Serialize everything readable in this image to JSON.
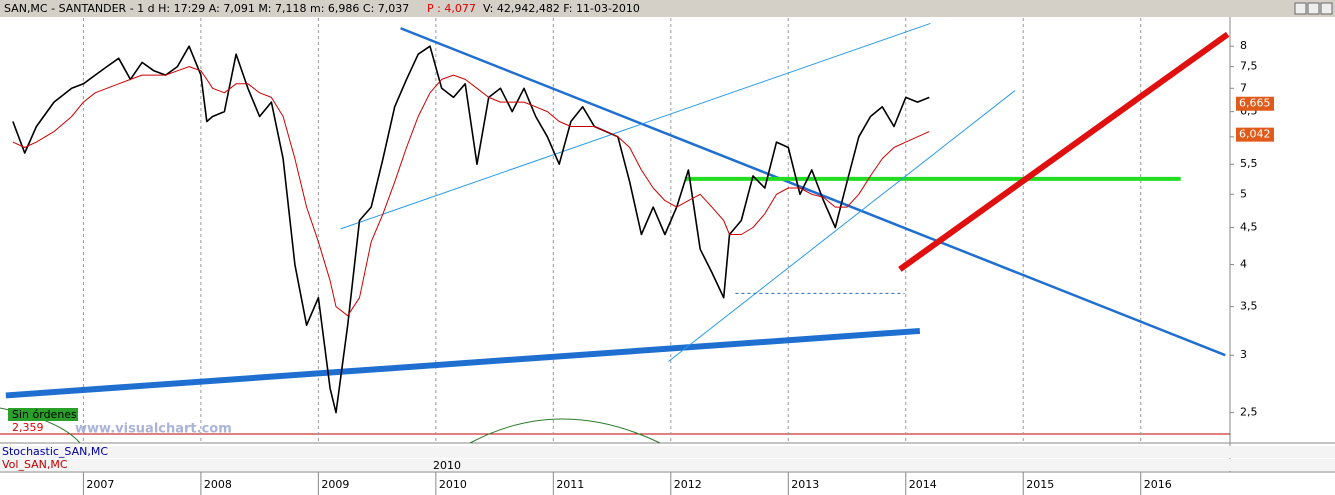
{
  "header": {
    "parts": [
      "SAN,MC - SANTANDER -  1 d  H: 17:29  A: 7,091  M: 7,118  m: 6,986  C: 7,037",
      "P : 4,077",
      "V: 42,942,482  F: 11-03-2010"
    ]
  },
  "panel": {
    "orders": "Sin órdenes",
    "orders_value": "2,359",
    "watermark": "www.visualchart.com",
    "stochastic": "Stochastic_SAN,MC",
    "volume": "Vol_SAN,MC",
    "marker": "2010"
  },
  "chart_data": {
    "type": "line",
    "ylog": true,
    "xgrid": true,
    "x": [
      2006.4,
      2006.5,
      2006.6,
      2006.75,
      2006.9,
      2007.0,
      2007.1,
      2007.2,
      2007.3,
      2007.4,
      2007.5,
      2007.6,
      2007.7,
      2007.8,
      2007.9,
      2008.0,
      2008.05,
      2008.1,
      2008.2,
      2008.3,
      2008.4,
      2008.5,
      2008.6,
      2008.7,
      2008.8,
      2008.9,
      2009.0,
      2009.1,
      2009.15,
      2009.25,
      2009.35,
      2009.45,
      2009.55,
      2009.65,
      2009.75,
      2009.85,
      2009.95,
      2010.05,
      2010.15,
      2010.25,
      2010.35,
      2010.45,
      2010.55,
      2010.65,
      2010.75,
      2010.85,
      2010.95,
      2011.05,
      2011.15,
      2011.25,
      2011.35,
      2011.45,
      2011.55,
      2011.65,
      2011.75,
      2011.85,
      2011.95,
      2012.05,
      2012.15,
      2012.25,
      2012.35,
      2012.45,
      2012.5,
      2012.6,
      2012.7,
      2012.8,
      2012.9,
      2013.0,
      2013.1,
      2013.2,
      2013.3,
      2013.4,
      2013.5,
      2013.6,
      2013.7,
      2013.8,
      2013.9,
      2014.0,
      2014.1,
      2014.2
    ],
    "series": [
      {
        "color": "#000000",
        "values": [
          6.3,
          5.7,
          6.2,
          6.7,
          7.0,
          7.1,
          7.3,
          7.5,
          7.7,
          7.2,
          7.6,
          7.4,
          7.3,
          7.5,
          8.0,
          7.3,
          6.3,
          6.4,
          6.5,
          7.8,
          7.0,
          6.4,
          6.7,
          5.6,
          4.0,
          3.3,
          3.6,
          2.7,
          2.5,
          3.3,
          4.6,
          4.8,
          5.6,
          6.6,
          7.2,
          7.8,
          8.0,
          7.0,
          6.8,
          7.1,
          5.5,
          6.8,
          7.0,
          6.5,
          7.0,
          6.4,
          6.0,
          5.5,
          6.3,
          6.6,
          6.2,
          6.1,
          6.0,
          5.2,
          4.4,
          4.8,
          4.4,
          4.8,
          5.4,
          4.2,
          3.9,
          3.6,
          4.4,
          4.6,
          5.3,
          5.1,
          5.9,
          5.8,
          5.0,
          5.4,
          4.9,
          4.5,
          5.2,
          6.0,
          6.4,
          6.6,
          6.2,
          6.8,
          6.7,
          6.8
        ]
      },
      {
        "color": "#cc0000",
        "values": [
          5.9,
          5.8,
          5.9,
          6.1,
          6.4,
          6.7,
          6.9,
          7.0,
          7.1,
          7.2,
          7.3,
          7.3,
          7.3,
          7.4,
          7.5,
          7.4,
          7.2,
          7.0,
          6.9,
          7.1,
          7.1,
          6.9,
          6.8,
          6.4,
          5.6,
          4.8,
          4.3,
          3.8,
          3.5,
          3.4,
          3.6,
          4.3,
          4.7,
          5.2,
          5.8,
          6.4,
          6.9,
          7.2,
          7.3,
          7.2,
          7.0,
          6.8,
          6.7,
          6.7,
          6.7,
          6.6,
          6.5,
          6.3,
          6.2,
          6.2,
          6.2,
          6.1,
          6.0,
          5.8,
          5.4,
          5.1,
          4.9,
          4.8,
          4.9,
          5.0,
          4.8,
          4.6,
          4.4,
          4.4,
          4.5,
          4.7,
          5.0,
          5.1,
          5.1,
          5.0,
          4.95,
          4.8,
          4.8,
          5.0,
          5.3,
          5.6,
          5.8,
          5.9,
          6.0,
          6.1
        ]
      }
    ],
    "lines": [
      {
        "color": "#1f6fd0",
        "x": [
          2006.34,
          2014.12
        ],
        "values": [
          2.64,
          3.24
        ]
      },
      {
        "color": "#1f6fd0",
        "x": [
          2009.7,
          2016.72
        ],
        "values": [
          8.47,
          3.0
        ]
      },
      {
        "color": "#22dd22",
        "x": [
          2012.12,
          2016.34
        ],
        "values": [
          5.25,
          5.25
        ]
      },
      {
        "color": "#e01010",
        "x": [
          2013.95,
          2016.74
        ],
        "values": [
          3.94,
          8.31
        ]
      },
      {
        "color": "#2a9ae8",
        "x": [
          2009.19,
          2014.21
        ],
        "values": [
          4.48,
          8.6
        ]
      },
      {
        "color": "#2a9ae8",
        "x": [
          2011.98,
          2014.93
        ],
        "values": [
          2.94,
          6.95
        ]
      },
      {
        "color": "#1f6fd0",
        "x": [
          2012.55,
          2013.99
        ],
        "values": [
          3.65,
          3.65
        ]
      }
    ],
    "price_tags": {
      "color": "#e05a1a",
      "values": [
        6.665,
        6.042
      ],
      "value_labels": [
        "6,665",
        "6,042"
      ]
    },
    "xlim": [
      2006.29,
      2016.76
    ],
    "xticks": [
      2007,
      2008,
      2009,
      2010,
      2011,
      2012,
      2013,
      2014,
      2015,
      2016
    ],
    "ylim": [
      2.27,
      8.75
    ],
    "yticks": [
      {
        "value": 2.5,
        "label": "2,5"
      },
      3,
      {
        "value": 3.5,
        "label": "3,5"
      },
      4,
      {
        "value": 4.5,
        "label": "4,5"
      },
      5,
      {
        "value": 5.5,
        "label": "5,5"
      },
      6,
      {
        "value": 6.5,
        "label": "6,5"
      },
      7,
      {
        "value": 7.5,
        "label": "7,5"
      },
      8
    ]
  }
}
